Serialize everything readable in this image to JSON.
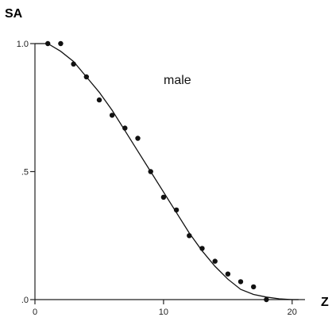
{
  "chart_data": {
    "type": "scatter",
    "title": "",
    "ylabel": "SA",
    "xlabel": "Z",
    "annotation": "male",
    "xlim": [
      0,
      21
    ],
    "ylim": [
      0,
      1.0
    ],
    "x_ticks": [
      0,
      10,
      20
    ],
    "x_tick_labels": [
      "0",
      "10",
      "20"
    ],
    "y_ticks": [
      0,
      0.5,
      1.0
    ],
    "y_tick_labels": [
      ".0",
      ".5",
      "1.0"
    ],
    "grid": false,
    "series": [
      {
        "type": "scatter",
        "x": [
          1,
          2,
          3,
          4,
          5,
          6,
          7,
          8,
          9,
          10,
          11,
          12,
          13,
          14,
          15,
          16,
          17,
          18
        ],
        "y": [
          1.0,
          1.0,
          0.92,
          0.87,
          0.78,
          0.72,
          0.67,
          0.63,
          0.5,
          0.4,
          0.35,
          0.25,
          0.2,
          0.15,
          0.1,
          0.07,
          0.05,
          0.0
        ]
      },
      {
        "type": "line",
        "x": [
          0,
          1,
          2,
          3,
          4,
          5,
          6,
          7,
          8,
          9,
          10,
          11,
          12,
          13,
          14,
          15,
          16,
          17,
          18,
          19,
          20,
          20.5
        ],
        "y": [
          1.0,
          1.0,
          0.97,
          0.93,
          0.87,
          0.81,
          0.74,
          0.66,
          0.58,
          0.5,
          0.42,
          0.34,
          0.26,
          0.19,
          0.13,
          0.08,
          0.04,
          0.02,
          0.01,
          0.003,
          0.0,
          0.0
        ]
      }
    ],
    "colors": {
      "ink": "#111111",
      "axis": "#222222"
    }
  }
}
